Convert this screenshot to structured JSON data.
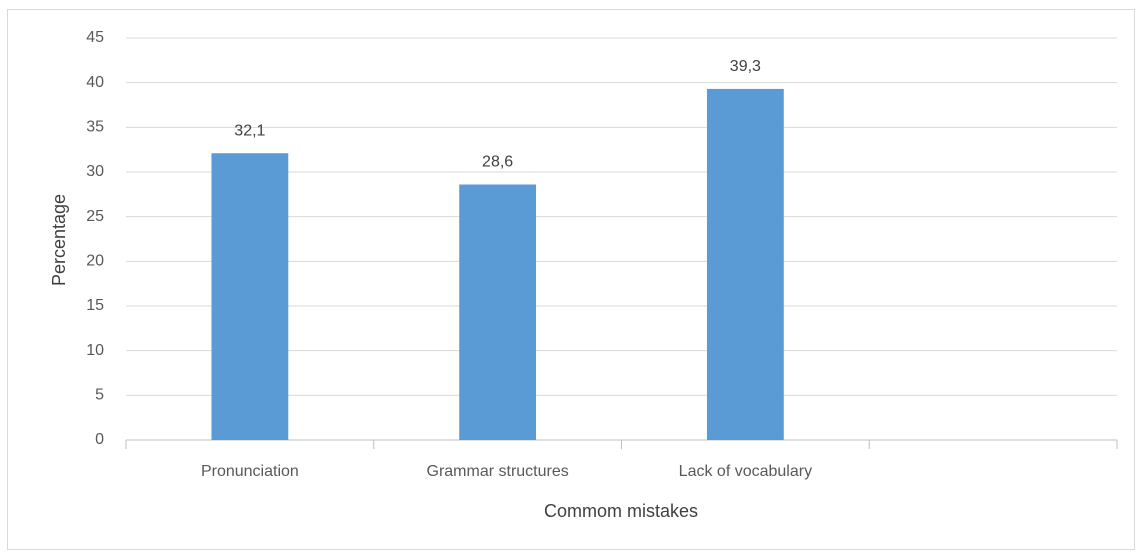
{
  "chart_data": {
    "type": "bar",
    "x_label": "Commom mistakes",
    "y_label": "Percentage",
    "categories": [
      "Pronunciation",
      "Grammar structures",
      "Lack of vocabulary",
      null
    ],
    "values": [
      32.1,
      28.6,
      39.3,
      null
    ],
    "value_labels": [
      "32,1",
      "28,6",
      "39,3",
      null
    ],
    "color": "#5b9bd5",
    "ylim": [
      0,
      45
    ],
    "yticks": [
      0,
      5,
      10,
      15,
      20,
      25,
      30,
      35,
      40,
      45
    ],
    "grid": true
  }
}
